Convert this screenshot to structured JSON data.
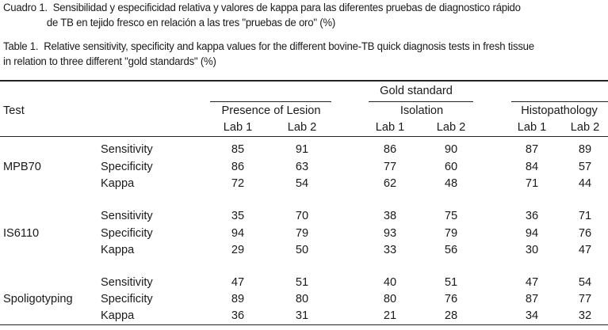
{
  "caption_es": {
    "label": "Cuadro 1.",
    "line1": "Sensibilidad y especificidad relativa y valores de kappa para las diferentes pruebas de diagnostico rápido",
    "line2": "de TB en tejido fresco en relación a las tres \"pruebas de oro\" (%)"
  },
  "caption_en": {
    "label": "Table 1.",
    "line1": "Relative sensitivity, specificity and kappa values for the different bovine-TB quick diagnosis tests in fresh tissue",
    "line2": "in relation to three different \"gold standards\" (%)"
  },
  "header": {
    "test": "Test",
    "gold_standard": "Gold standard",
    "groups": [
      "Presence of Lesion",
      "Isolation",
      "Histopathology"
    ],
    "labs": [
      "Lab 1",
      "Lab 2",
      "Lab 1",
      "Lab 2",
      "Lab 1",
      "Lab 2"
    ]
  },
  "rows": [
    {
      "test": "MPB70",
      "measures": [
        {
          "name": "Sensitivity",
          "values": [
            "85",
            "91",
            "86",
            "90",
            "87",
            "89"
          ]
        },
        {
          "name": "Specificity",
          "values": [
            "86",
            "63",
            "77",
            "60",
            "84",
            "57"
          ]
        },
        {
          "name": "Kappa",
          "values": [
            "72",
            "54",
            "62",
            "48",
            "71",
            "44"
          ]
        }
      ]
    },
    {
      "test": "IS6110",
      "measures": [
        {
          "name": "Sensitivity",
          "values": [
            "35",
            "70",
            "38",
            "75",
            "36",
            "71"
          ]
        },
        {
          "name": "Specificity",
          "values": [
            "94",
            "79",
            "93",
            "79",
            "94",
            "76"
          ]
        },
        {
          "name": "Kappa",
          "values": [
            "29",
            "50",
            "33",
            "56",
            "30",
            "47"
          ]
        }
      ]
    },
    {
      "test": "Spoligotyping",
      "measures": [
        {
          "name": "Sensitivity",
          "values": [
            "47",
            "51",
            "40",
            "51",
            "47",
            "54"
          ]
        },
        {
          "name": "Specificity",
          "values": [
            "89",
            "80",
            "80",
            "76",
            "87",
            "77"
          ]
        },
        {
          "name": "Kappa",
          "values": [
            "36",
            "31",
            "21",
            "28",
            "34",
            "32"
          ]
        }
      ]
    }
  ]
}
